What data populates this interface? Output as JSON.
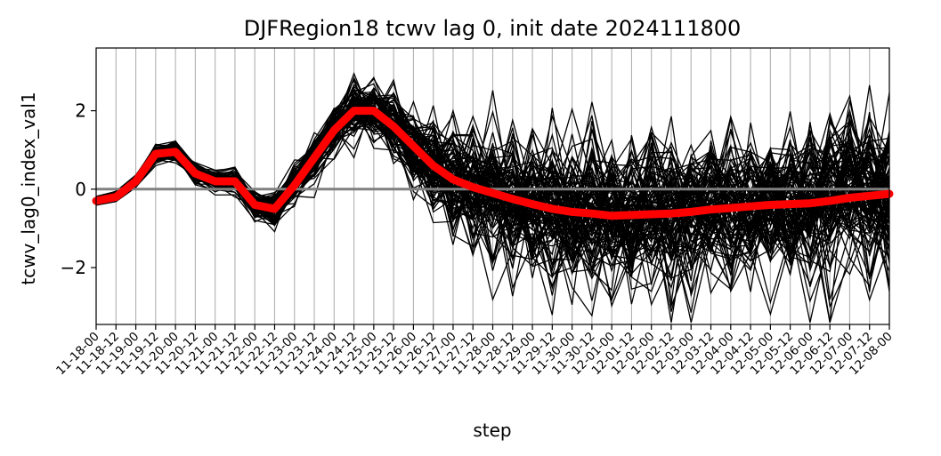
{
  "chart_data": {
    "type": "line",
    "title": "DJFRegion18 tcwv lag 0, init date 2024111800",
    "xlabel": "step",
    "ylabel": "tcwv_lag0_index_val1",
    "categories": [
      "11-18-00",
      "11-18-12",
      "11-19-00",
      "11-19-12",
      "11-20-00",
      "11-20-12",
      "11-21-00",
      "11-21-12",
      "11-22-00",
      "11-22-12",
      "11-23-00",
      "11-23-12",
      "11-24-00",
      "11-24-12",
      "11-25-00",
      "11-25-12",
      "11-26-00",
      "11-26-12",
      "11-27-00",
      "11-27-12",
      "11-28-00",
      "11-28-12",
      "11-29-00",
      "11-29-12",
      "11-30-00",
      "11-30-12",
      "12-01-00",
      "12-01-12",
      "12-02-00",
      "12-02-12",
      "12-03-00",
      "12-03-12",
      "12-04-00",
      "12-04-12",
      "12-05-00",
      "12-05-12",
      "12-06-00",
      "12-06-12",
      "12-07-00",
      "12-07-12",
      "12-08-00"
    ],
    "ylim": [
      -3.45,
      3.6
    ],
    "yticks": [
      -2,
      0,
      2
    ],
    "ytick_labels": [
      "−2",
      "0",
      "2"
    ],
    "grid": "vertical",
    "zero_line": 0,
    "ensemble_member_count": 100,
    "ensemble_spread_sd": [
      0.05,
      0.08,
      0.1,
      0.12,
      0.15,
      0.15,
      0.15,
      0.15,
      0.2,
      0.25,
      0.25,
      0.3,
      0.35,
      0.4,
      0.4,
      0.45,
      0.5,
      0.6,
      0.7,
      0.75,
      0.8,
      0.85,
      0.85,
      0.9,
      0.9,
      0.9,
      0.9,
      0.95,
      0.95,
      0.95,
      0.95,
      0.95,
      0.95,
      0.95,
      0.95,
      0.95,
      0.95,
      0.95,
      0.95,
      0.95,
      0.95
    ],
    "series": [
      {
        "role": "ensemble-mean",
        "color": "#ff0000",
        "values": [
          -0.3,
          -0.2,
          0.2,
          0.9,
          0.95,
          0.4,
          0.2,
          0.2,
          -0.4,
          -0.5,
          0.1,
          0.8,
          1.5,
          2.0,
          2.0,
          1.6,
          1.1,
          0.6,
          0.25,
          0.05,
          -0.1,
          -0.25,
          -0.38,
          -0.5,
          -0.58,
          -0.62,
          -0.68,
          -0.66,
          -0.64,
          -0.62,
          -0.58,
          -0.52,
          -0.48,
          -0.44,
          -0.4,
          -0.38,
          -0.36,
          -0.3,
          -0.22,
          -0.17,
          -0.12
        ]
      }
    ],
    "member_color": "#000000"
  }
}
